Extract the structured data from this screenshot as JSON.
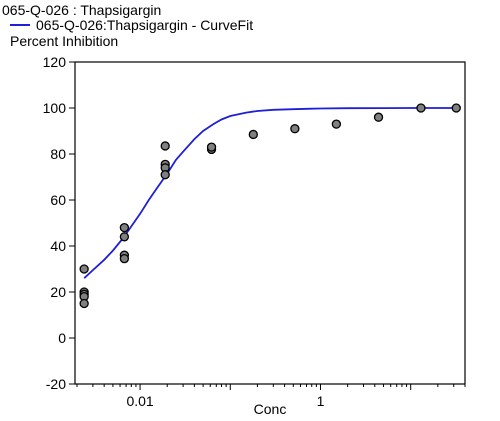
{
  "chart_data": {
    "type": "scatter",
    "title": "065-Q-026  : Thapsigargin",
    "xlabel": "Conc",
    "ylabel": "Percent Inhibition",
    "xscale": "log",
    "xlim": [
      0.0019,
      40
    ],
    "ylim": [
      -20,
      120
    ],
    "xticks": [
      {
        "value": 0.01,
        "label": "0.01"
      },
      {
        "value": 1,
        "label": "1"
      }
    ],
    "yticks": [
      {
        "value": -20,
        "label": "-20"
      },
      {
        "value": 0,
        "label": "0"
      },
      {
        "value": 20,
        "label": "20"
      },
      {
        "value": 40,
        "label": "40"
      },
      {
        "value": 60,
        "label": "60"
      },
      {
        "value": 80,
        "label": "80"
      },
      {
        "value": 100,
        "label": "100"
      },
      {
        "value": 120,
        "label": "120"
      }
    ],
    "grid": false,
    "legend_position": "top-left",
    "series": [
      {
        "name": "065-Q-026:Thapsigargin - CurveFit",
        "kind": "curve",
        "color": "#1f1fd6",
        "x": [
          0.0024,
          0.003,
          0.004,
          0.005,
          0.0065,
          0.008,
          0.01,
          0.0125,
          0.015,
          0.02,
          0.025,
          0.03,
          0.04,
          0.05,
          0.065,
          0.08,
          0.1,
          0.15,
          0.2,
          0.3,
          0.5,
          0.8,
          1,
          2,
          5,
          10,
          20,
          32
        ],
        "y": [
          26,
          29.5,
          34,
          38,
          43.5,
          48.5,
          54,
          60,
          64.5,
          71.5,
          77.5,
          81,
          86.5,
          90,
          93,
          95,
          96.5,
          98,
          98.7,
          99.2,
          99.5,
          99.7,
          99.8,
          99.9,
          99.95,
          100,
          100,
          100
        ]
      },
      {
        "name": "065-Q-026  : Thapsigargin",
        "kind": "points",
        "color": "#808080",
        "x": [
          0.0024,
          0.0024,
          0.0024,
          0.0024,
          0.0024,
          0.0067,
          0.0067,
          0.0067,
          0.0067,
          0.019,
          0.019,
          0.019,
          0.019,
          0.062,
          0.062,
          0.18,
          0.52,
          1.5,
          4.4,
          13,
          32
        ],
        "y": [
          30,
          20,
          19,
          18,
          15,
          48,
          44,
          36,
          34.5,
          75.5,
          74,
          71,
          83.5,
          82,
          83,
          88.5,
          91,
          93,
          96,
          100,
          100
        ]
      }
    ]
  }
}
